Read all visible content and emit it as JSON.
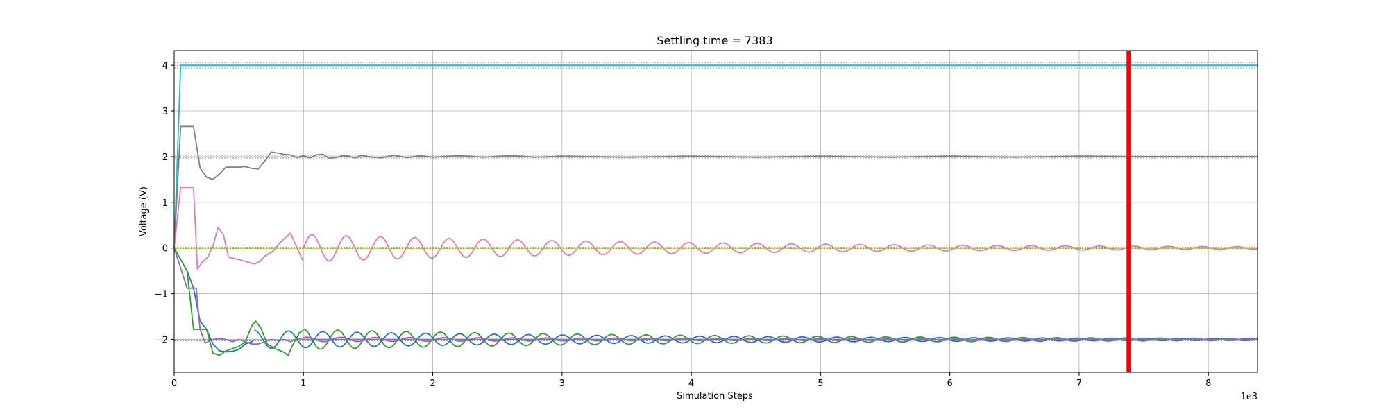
{
  "chart_data": {
    "type": "line",
    "title": "Settling time = 7383",
    "xlabel": "Simulation Steps",
    "ylabel": "Voltage (V)",
    "x_offset_label": "1e3",
    "xlim": [
      0,
      8.38
    ],
    "ylim": [
      -2.72,
      4.32
    ],
    "x_ticks": [
      0,
      1,
      2,
      3,
      4,
      5,
      6,
      7,
      8
    ],
    "y_ticks": [
      -2,
      -1,
      0,
      1,
      2,
      3,
      4
    ],
    "grid": true,
    "settling_marker": {
      "x": 7.383,
      "color": "#ff0000"
    },
    "tolerance_bands": [
      {
        "center": 4,
        "low": 3.94,
        "high": 4.06
      },
      {
        "center": 2,
        "low": 1.97,
        "high": 2.03
      },
      {
        "center": 0,
        "low": -0.015,
        "high": 0.015
      },
      {
        "center": -2,
        "low": -2.03,
        "high": -1.97
      }
    ],
    "series": [
      {
        "color": "#17becf",
        "points": [
          [
            0,
            0
          ],
          [
            0.05,
            4
          ],
          [
            8.38,
            4
          ]
        ]
      },
      {
        "color": "#7f7f7f",
        "points": [
          [
            0,
            0
          ],
          [
            0.05,
            2.66
          ],
          [
            0.1,
            2.66
          ],
          [
            0.15,
            2.66
          ],
          [
            0.2,
            1.75
          ],
          [
            0.25,
            1.55
          ],
          [
            0.3,
            1.5
          ],
          [
            0.35,
            1.62
          ],
          [
            0.4,
            1.77
          ],
          [
            0.5,
            1.77
          ],
          [
            0.55,
            1.78
          ],
          [
            0.6,
            1.74
          ],
          [
            0.65,
            1.73
          ],
          [
            0.7,
            1.9
          ],
          [
            0.75,
            2.1
          ],
          [
            0.8,
            2.08
          ],
          [
            0.85,
            2.05
          ],
          [
            0.9,
            2.04
          ],
          [
            0.95,
            1.98
          ],
          [
            1.0,
            2.02
          ],
          [
            1.05,
            1.97
          ],
          [
            1.1,
            2.04
          ],
          [
            1.15,
            2.05
          ],
          [
            1.2,
            1.96
          ],
          [
            1.25,
            1.98
          ],
          [
            1.3,
            2.02
          ],
          [
            1.35,
            2.01
          ],
          [
            1.4,
            1.97
          ],
          [
            1.45,
            2.03
          ],
          [
            1.5,
            2.0
          ],
          [
            1.6,
            1.97
          ],
          [
            1.7,
            2.03
          ],
          [
            1.8,
            1.98
          ],
          [
            1.9,
            2.02
          ],
          [
            2.0,
            1.99
          ],
          [
            2.2,
            2.02
          ],
          [
            2.4,
            1.99
          ],
          [
            2.6,
            2.02
          ],
          [
            2.8,
            1.99
          ],
          [
            3.0,
            2.01
          ],
          [
            3.5,
            1.99
          ],
          [
            4.0,
            2.01
          ],
          [
            4.5,
            1.99
          ],
          [
            5.0,
            2.01
          ],
          [
            5.5,
            1.99
          ],
          [
            6.0,
            2.01
          ],
          [
            6.5,
            1.99
          ],
          [
            7.0,
            2.01
          ],
          [
            7.5,
            2.0
          ],
          [
            8.38,
            2.0
          ]
        ]
      },
      {
        "color": "#e377c2",
        "points": [
          [
            0,
            0
          ],
          [
            0.05,
            1.33
          ],
          [
            0.1,
            1.33
          ],
          [
            0.15,
            1.33
          ],
          [
            0.18,
            -0.45
          ],
          [
            0.22,
            -0.3
          ],
          [
            0.26,
            -0.2
          ],
          [
            0.3,
            0.05
          ],
          [
            0.34,
            0.45
          ],
          [
            0.38,
            0.3
          ],
          [
            0.42,
            -0.2
          ],
          [
            0.5,
            -0.25
          ],
          [
            0.56,
            -0.3
          ],
          [
            0.62,
            -0.35
          ],
          [
            0.66,
            -0.3
          ],
          [
            0.7,
            -0.18
          ],
          [
            0.76,
            -0.08
          ],
          [
            0.82,
            0.12
          ],
          [
            0.9,
            0.33
          ],
          [
            0.95,
            0.0
          ],
          [
            1.0,
            -0.3
          ]
        ]
      },
      {
        "color": "#1f77b4",
        "points": [
          [
            0,
            0
          ],
          [
            0.1,
            -0.5
          ],
          [
            0.15,
            -0.88
          ],
          [
            0.2,
            -1.6
          ],
          [
            0.25,
            -1.78
          ],
          [
            0.3,
            -2.1
          ],
          [
            0.35,
            -2.25
          ],
          [
            0.4,
            -2.27
          ],
          [
            0.45,
            -2.26
          ],
          [
            0.5,
            -2.22
          ],
          [
            0.55,
            -2.1
          ],
          [
            0.6,
            -2.05
          ],
          [
            0.62,
            -2.0
          ]
        ]
      },
      {
        "color": "#9467bd",
        "points": [
          [
            0,
            0
          ],
          [
            0.1,
            -0.88
          ],
          [
            0.17,
            -0.88
          ],
          [
            0.2,
            -1.78
          ],
          [
            0.24,
            -2.08
          ],
          [
            0.3,
            -2.0
          ],
          [
            0.35,
            -1.98
          ],
          [
            0.4,
            -2.0
          ],
          [
            0.45,
            -2.05
          ],
          [
            0.5,
            -2.0
          ],
          [
            0.55,
            -2.05
          ],
          [
            0.6,
            -2.1
          ],
          [
            0.65,
            -2.1
          ],
          [
            0.7,
            -2.05
          ],
          [
            0.75,
            -2.0
          ],
          [
            0.8,
            -2.02
          ],
          [
            0.85,
            -2.0
          ],
          [
            0.9,
            -2.05
          ],
          [
            0.95,
            -1.98
          ],
          [
            1.0,
            -2.0
          ],
          [
            8.38,
            -2.0
          ]
        ]
      },
      {
        "color": "#2ca02c",
        "points": [
          [
            0,
            0
          ],
          [
            0.1,
            -0.5
          ],
          [
            0.15,
            -1.78
          ],
          [
            0.25,
            -1.78
          ],
          [
            0.3,
            -2.3
          ],
          [
            0.35,
            -2.35
          ],
          [
            0.4,
            -2.25
          ],
          [
            0.45,
            -2.2
          ],
          [
            0.5,
            -2.15
          ],
          [
            0.55,
            -2.05
          ],
          [
            0.6,
            -1.7
          ],
          [
            0.63,
            -1.6
          ],
          [
            0.67,
            -1.75
          ],
          [
            0.72,
            -2.1
          ],
          [
            0.78,
            -2.2
          ],
          [
            0.85,
            -2.28
          ],
          [
            0.88,
            -2.35
          ],
          [
            0.92,
            -2.1
          ],
          [
            0.97,
            -1.85
          ],
          [
            1.0,
            -1.8
          ]
        ]
      },
      {
        "color": "#bcbd22",
        "points": [
          [
            0,
            0
          ],
          [
            8.38,
            0
          ]
        ]
      }
    ],
    "oscillations": [
      {
        "color": "#e377c2",
        "center": 0,
        "start": 1.0,
        "end": 8.38,
        "period": 0.265,
        "amp_start": 0.3,
        "amp_end": 0.03,
        "phase": 0.0
      },
      {
        "color": "#2ca02c",
        "center": -2,
        "start": 1.0,
        "end": 8.38,
        "period": 0.265,
        "amp_start": 0.22,
        "amp_end": 0.025,
        "phase": 0.5
      },
      {
        "color": "#9467bd",
        "center": -2,
        "start": 1.0,
        "end": 8.38,
        "period": 0.265,
        "amp_start": 0.05,
        "amp_end": 0.01,
        "phase": 0.3
      },
      {
        "color": "#1f77b4",
        "center": -2,
        "start": 0.62,
        "end": 8.38,
        "period": 0.265,
        "amp_start": 0.2,
        "amp_end": 0.02,
        "phase": 0.5
      }
    ]
  }
}
